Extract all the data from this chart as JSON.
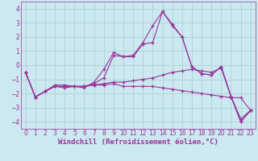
{
  "xlabel": "Windchill (Refroidissement éolien,°C)",
  "background_color": "#cce8f0",
  "grid_color": "#aad4d4",
  "line_color": "#993399",
  "xlim": [
    -0.5,
    23.5
  ],
  "ylim": [
    -4.5,
    4.5
  ],
  "yticks": [
    -4,
    -3,
    -2,
    -1,
    0,
    1,
    2,
    3,
    4
  ],
  "xticks": [
    0,
    1,
    2,
    3,
    4,
    5,
    6,
    7,
    8,
    9,
    10,
    11,
    12,
    13,
    14,
    15,
    16,
    17,
    18,
    19,
    20,
    21,
    22,
    23
  ],
  "series": [
    [
      -0.5,
      -2.25,
      -1.85,
      -1.4,
      -1.4,
      -1.5,
      -1.5,
      -1.3,
      -0.9,
      0.7,
      0.6,
      0.6,
      1.5,
      1.6,
      3.8,
      2.8,
      2.0,
      -0.1,
      -0.6,
      -0.7,
      -0.1,
      -2.2,
      -3.8,
      -3.2
    ],
    [
      -0.5,
      -2.25,
      -1.85,
      -1.5,
      -1.6,
      -1.5,
      -1.6,
      -1.2,
      -0.3,
      0.9,
      0.6,
      0.7,
      1.6,
      2.8,
      3.8,
      2.9,
      2.0,
      -0.1,
      -0.6,
      -0.7,
      -0.1,
      -2.2,
      -4.0,
      -3.2
    ],
    [
      -0.5,
      -2.25,
      -1.85,
      -1.5,
      -1.5,
      -1.5,
      -1.5,
      -1.4,
      -1.4,
      -1.3,
      -1.5,
      -1.5,
      -1.5,
      -1.5,
      -1.6,
      -1.7,
      -1.8,
      -1.9,
      -2.0,
      -2.1,
      -2.2,
      -2.3,
      -2.3,
      -3.2
    ],
    [
      -0.5,
      -2.25,
      -1.85,
      -1.5,
      -1.5,
      -1.5,
      -1.5,
      -1.4,
      -1.3,
      -1.2,
      -1.2,
      -1.1,
      -1.0,
      -0.9,
      -0.7,
      -0.5,
      -0.4,
      -0.3,
      -0.4,
      -0.5,
      -0.2,
      -2.2,
      -4.0,
      -3.2
    ]
  ],
  "xlabel_fontsize": 6.5,
  "tick_fontsize": 5.5
}
